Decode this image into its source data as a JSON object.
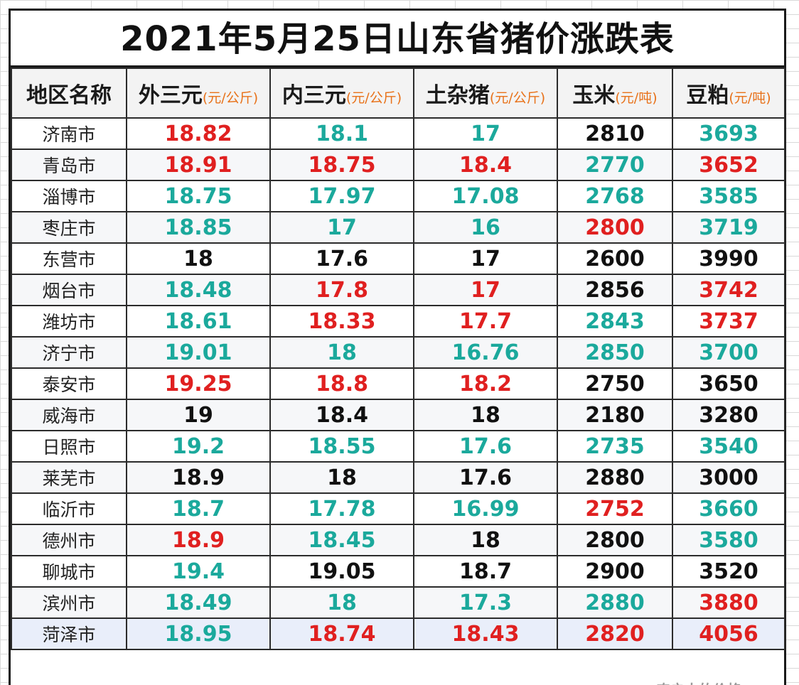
{
  "title": "2021年5月25日山东省猪价涨跌表",
  "colors": {
    "up": "#e02020",
    "down": "#1ba99c",
    "flat": "#111111",
    "unit": "#e8721a"
  },
  "columns": [
    {
      "label": "地区名称",
      "unit": ""
    },
    {
      "label": "外三元",
      "unit": "(元/公斤)"
    },
    {
      "label": "内三元",
      "unit": "(元/公斤)"
    },
    {
      "label": "土杂猪",
      "unit": "(元/公斤)"
    },
    {
      "label": "玉米",
      "unit": "(元/吨)"
    },
    {
      "label": "豆粕",
      "unit": "(元/吨)"
    }
  ],
  "rows": [
    {
      "region": "济南市",
      "cells": [
        {
          "v": "18.82",
          "t": "up"
        },
        {
          "v": "18.1",
          "t": "down"
        },
        {
          "v": "17",
          "t": "down"
        },
        {
          "v": "2810",
          "t": "flat"
        },
        {
          "v": "3693",
          "t": "down"
        }
      ]
    },
    {
      "region": "青岛市",
      "cells": [
        {
          "v": "18.91",
          "t": "up"
        },
        {
          "v": "18.75",
          "t": "up"
        },
        {
          "v": "18.4",
          "t": "up"
        },
        {
          "v": "2770",
          "t": "down"
        },
        {
          "v": "3652",
          "t": "up"
        }
      ]
    },
    {
      "region": "淄博市",
      "cells": [
        {
          "v": "18.75",
          "t": "down"
        },
        {
          "v": "17.97",
          "t": "down"
        },
        {
          "v": "17.08",
          "t": "down"
        },
        {
          "v": "2768",
          "t": "down"
        },
        {
          "v": "3585",
          "t": "down"
        }
      ]
    },
    {
      "region": "枣庄市",
      "cells": [
        {
          "v": "18.85",
          "t": "down"
        },
        {
          "v": "17",
          "t": "down"
        },
        {
          "v": "16",
          "t": "down"
        },
        {
          "v": "2800",
          "t": "up"
        },
        {
          "v": "3719",
          "t": "down"
        }
      ]
    },
    {
      "region": "东营市",
      "cells": [
        {
          "v": "18",
          "t": "flat"
        },
        {
          "v": "17.6",
          "t": "flat"
        },
        {
          "v": "17",
          "t": "flat"
        },
        {
          "v": "2600",
          "t": "flat"
        },
        {
          "v": "3990",
          "t": "flat"
        }
      ]
    },
    {
      "region": "烟台市",
      "cells": [
        {
          "v": "18.48",
          "t": "down"
        },
        {
          "v": "17.8",
          "t": "up"
        },
        {
          "v": "17",
          "t": "up"
        },
        {
          "v": "2856",
          "t": "flat"
        },
        {
          "v": "3742",
          "t": "up"
        }
      ]
    },
    {
      "region": "潍坊市",
      "cells": [
        {
          "v": "18.61",
          "t": "down"
        },
        {
          "v": "18.33",
          "t": "up"
        },
        {
          "v": "17.7",
          "t": "up"
        },
        {
          "v": "2843",
          "t": "down"
        },
        {
          "v": "3737",
          "t": "up"
        }
      ]
    },
    {
      "region": "济宁市",
      "cells": [
        {
          "v": "19.01",
          "t": "down"
        },
        {
          "v": "18",
          "t": "down"
        },
        {
          "v": "16.76",
          "t": "down"
        },
        {
          "v": "2850",
          "t": "down"
        },
        {
          "v": "3700",
          "t": "down"
        }
      ]
    },
    {
      "region": "泰安市",
      "cells": [
        {
          "v": "19.25",
          "t": "up"
        },
        {
          "v": "18.8",
          "t": "up"
        },
        {
          "v": "18.2",
          "t": "up"
        },
        {
          "v": "2750",
          "t": "flat"
        },
        {
          "v": "3650",
          "t": "flat"
        }
      ]
    },
    {
      "region": "威海市",
      "cells": [
        {
          "v": "19",
          "t": "flat"
        },
        {
          "v": "18.4",
          "t": "flat"
        },
        {
          "v": "18",
          "t": "flat"
        },
        {
          "v": "2180",
          "t": "flat"
        },
        {
          "v": "3280",
          "t": "flat"
        }
      ]
    },
    {
      "region": "日照市",
      "cells": [
        {
          "v": "19.2",
          "t": "down"
        },
        {
          "v": "18.55",
          "t": "down"
        },
        {
          "v": "17.6",
          "t": "down"
        },
        {
          "v": "2735",
          "t": "down"
        },
        {
          "v": "3540",
          "t": "down"
        }
      ]
    },
    {
      "region": "莱芜市",
      "cells": [
        {
          "v": "18.9",
          "t": "flat"
        },
        {
          "v": "18",
          "t": "flat"
        },
        {
          "v": "17.6",
          "t": "flat"
        },
        {
          "v": "2880",
          "t": "flat"
        },
        {
          "v": "3000",
          "t": "flat"
        }
      ]
    },
    {
      "region": "临沂市",
      "cells": [
        {
          "v": "18.7",
          "t": "down"
        },
        {
          "v": "17.78",
          "t": "down"
        },
        {
          "v": "16.99",
          "t": "down"
        },
        {
          "v": "2752",
          "t": "up"
        },
        {
          "v": "3660",
          "t": "down"
        }
      ]
    },
    {
      "region": "德州市",
      "cells": [
        {
          "v": "18.9",
          "t": "up"
        },
        {
          "v": "18.45",
          "t": "down"
        },
        {
          "v": "18",
          "t": "flat"
        },
        {
          "v": "2800",
          "t": "flat"
        },
        {
          "v": "3580",
          "t": "down"
        }
      ]
    },
    {
      "region": "聊城市",
      "cells": [
        {
          "v": "19.4",
          "t": "down"
        },
        {
          "v": "19.05",
          "t": "flat"
        },
        {
          "v": "18.7",
          "t": "flat"
        },
        {
          "v": "2900",
          "t": "flat"
        },
        {
          "v": "3520",
          "t": "flat"
        }
      ]
    },
    {
      "region": "滨州市",
      "cells": [
        {
          "v": "18.49",
          "t": "down"
        },
        {
          "v": "18",
          "t": "down"
        },
        {
          "v": "17.3",
          "t": "down"
        },
        {
          "v": "2880",
          "t": "down"
        },
        {
          "v": "3880",
          "t": "up"
        }
      ]
    },
    {
      "region": "菏泽市",
      "cells": [
        {
          "v": "18.95",
          "t": "down"
        },
        {
          "v": "18.74",
          "t": "up"
        },
        {
          "v": "18.43",
          "t": "up"
        },
        {
          "v": "2820",
          "t": "up"
        },
        {
          "v": "4056",
          "t": "up"
        }
      ]
    }
  ],
  "footer_note": "农户大的价格"
}
